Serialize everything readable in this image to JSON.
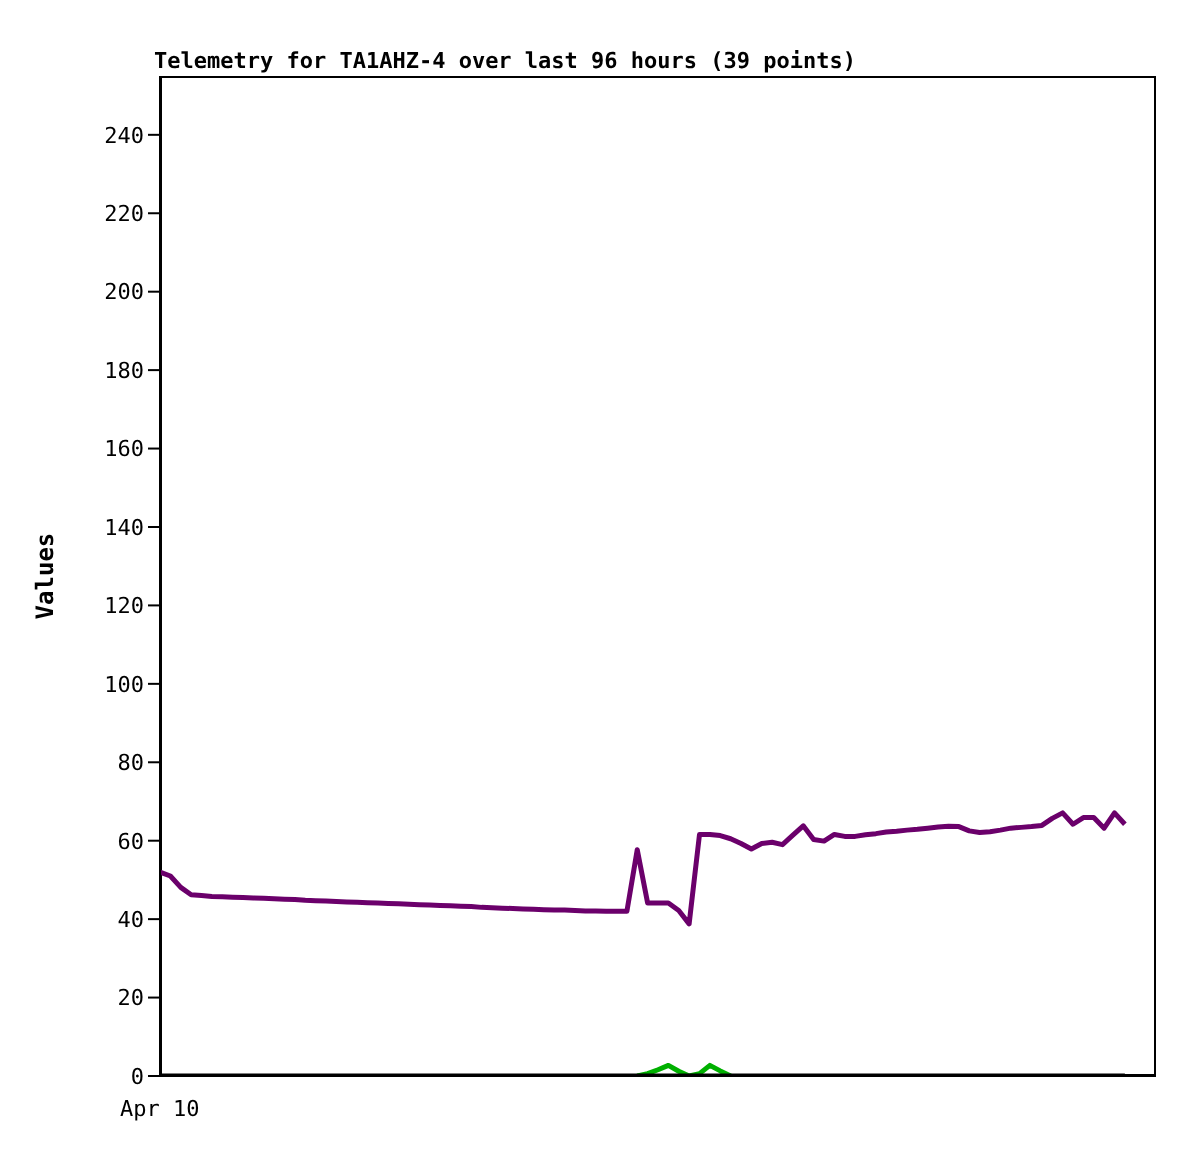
{
  "chart_data": {
    "type": "line",
    "title": "Telemetry for TA1AHZ-4 over last 96 hours (39 points)",
    "ylabel": "Values",
    "annotations": [
      "Apr 10"
    ],
    "categories": [
      null,
      null,
      null,
      null,
      null,
      null,
      null,
      null,
      null,
      null,
      null,
      null,
      null,
      null,
      null,
      null,
      null,
      null,
      null,
      null,
      null,
      null,
      null,
      null,
      null,
      null,
      null,
      null,
      null,
      null,
      null,
      null,
      null,
      null,
      null,
      null,
      null,
      null,
      null,
      null,
      null,
      null,
      null,
      null,
      null,
      null,
      null,
      null,
      null,
      null,
      null,
      null,
      null,
      null,
      null,
      null,
      null,
      null,
      null,
      null,
      null,
      null,
      null,
      null,
      null,
      null,
      null,
      null,
      null,
      null,
      null,
      null,
      null,
      null,
      null,
      null,
      null,
      null,
      null,
      null,
      null,
      null,
      null,
      null,
      null,
      null,
      null,
      null,
      null,
      null,
      null,
      null,
      null,
      null,
      null,
      null,
      null
    ],
    "ylim": [
      0,
      255
    ],
    "yticks": [
      0,
      20,
      40,
      60,
      80,
      100,
      120,
      140,
      160,
      180,
      200,
      220,
      240
    ],
    "series": [
      {
        "color": "#00b000",
        "values": [
          null,
          null,
          null,
          null,
          null,
          null,
          null,
          null,
          null,
          null,
          null,
          null,
          null,
          null,
          null,
          null,
          null,
          null,
          null,
          null,
          null,
          null,
          null,
          null,
          null,
          null,
          null,
          null,
          null,
          null,
          null,
          null,
          null,
          null,
          null,
          null,
          null,
          null,
          null,
          null,
          null,
          null,
          null,
          null,
          null,
          null,
          0,
          0.6,
          1.6,
          2.7,
          1.2,
          0,
          0.6,
          2.7,
          1.3,
          0,
          null,
          null,
          null,
          null,
          null,
          null,
          null,
          null,
          null,
          null,
          null,
          null,
          null,
          null,
          null,
          null,
          null,
          null,
          null,
          null,
          null,
          null,
          null,
          null,
          null,
          null,
          null,
          null,
          null,
          null,
          null,
          null,
          null,
          null,
          null,
          null,
          null,
          null,
          null,
          null,
          null
        ]
      },
      {
        "color": "#000000",
        "values": [
          0,
          0,
          0,
          0,
          0,
          0,
          0,
          0,
          0,
          0,
          0,
          0,
          0,
          0,
          0,
          0,
          0,
          0,
          0,
          0,
          0,
          0,
          0,
          0,
          0,
          0,
          0,
          0,
          0,
          0,
          0,
          0,
          0,
          0,
          0,
          0,
          0,
          0,
          0,
          0,
          0,
          0,
          0,
          0,
          0,
          0,
          0,
          0,
          0,
          0,
          0,
          0,
          0,
          0,
          0,
          0,
          0,
          0,
          0,
          0,
          0,
          0,
          0,
          0,
          0,
          0,
          0,
          0,
          0,
          0,
          0,
          0,
          0,
          0,
          0,
          0,
          0,
          0,
          0,
          0,
          0,
          0,
          0,
          0,
          0,
          0,
          0,
          0,
          0,
          0,
          0,
          0,
          0,
          0,
          null,
          null,
          null
        ]
      },
      {
        "color": "#6b006b",
        "values": [
          52,
          51.0,
          48.1,
          46.2,
          46.0,
          45.8,
          45.7,
          45.6,
          45.5,
          45.4,
          45.3,
          45.2,
          45.1,
          45.0,
          44.8,
          44.7,
          44.6,
          44.5,
          44.4,
          44.3,
          44.2,
          44.1,
          44.0,
          43.9,
          43.8,
          43.7,
          43.6,
          43.5,
          43.4,
          43.3,
          43.2,
          43.0,
          42.9,
          42.8,
          42.7,
          42.6,
          42.5,
          42.4,
          42.3,
          42.3,
          42.2,
          42.1,
          42.1,
          42.0,
          42.0,
          42.0,
          57.7,
          44.1,
          44.1,
          44.1,
          42.2,
          38.8,
          61.6,
          61.6,
          61.3,
          60.5,
          59.3,
          57.9,
          59.3,
          59.6,
          59.0,
          61.4,
          63.8,
          60.3,
          59.9,
          61.6,
          61.1,
          61.1,
          61.5,
          61.8,
          62.2,
          62.4,
          62.7,
          62.9,
          63.2,
          63.5,
          63.7,
          63.6,
          62.5,
          62.1,
          62.3,
          62.7,
          63.2,
          63.4,
          63.6,
          63.9,
          65.7,
          67.1,
          64.2,
          65.9,
          65.9,
          63.2,
          67.1,
          64.2,
          null,
          null,
          null
        ]
      }
    ]
  }
}
